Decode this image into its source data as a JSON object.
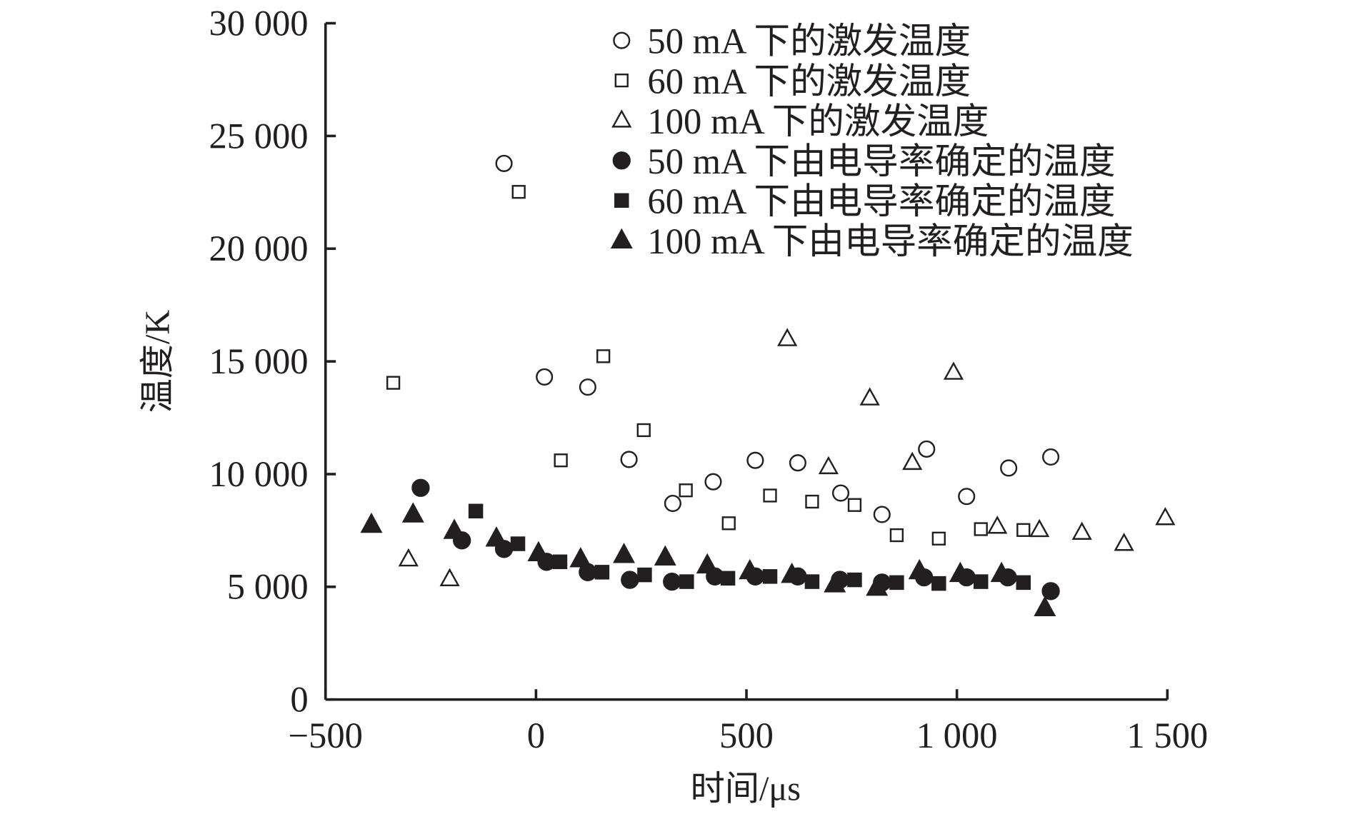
{
  "chart_data": {
    "type": "scatter",
    "title": "",
    "xlabel": "时间/μs",
    "ylabel": "温度/K",
    "xlim": [
      -500,
      1500
    ],
    "ylim": [
      0,
      30000
    ],
    "xticks": [
      -500,
      0,
      500,
      1000,
      1500
    ],
    "xtick_labels": [
      "−500",
      "0",
      "500",
      "1 000",
      "1 500"
    ],
    "yticks": [
      0,
      5000,
      10000,
      15000,
      20000,
      25000,
      30000
    ],
    "ytick_labels": [
      "0",
      "5 000",
      "10 000",
      "15 000",
      "20 000",
      "25 000",
      "30 000"
    ],
    "grid": false,
    "legend_position": "top-right",
    "series": [
      {
        "name": "50 mA 下的激发温度",
        "marker": "circle-open",
        "x": [
          -76,
          20,
          123,
          221,
          325,
          421,
          521,
          622,
          724,
          822,
          928,
          1023,
          1123,
          1223
        ],
        "y": [
          23780,
          14310,
          13860,
          10650,
          8700,
          9660,
          10610,
          10500,
          9160,
          8210,
          11110,
          9010,
          10270,
          10760
        ]
      },
      {
        "name": "60 mA 下的激发温度",
        "marker": "square-open",
        "x": [
          -339,
          -41,
          59,
          160,
          256,
          356,
          458,
          556,
          656,
          757,
          857,
          957,
          1057,
          1158
        ],
        "y": [
          14050,
          22520,
          10610,
          15230,
          11950,
          9280,
          7820,
          9050,
          8780,
          8630,
          7290,
          7140,
          7560,
          7520
        ]
      },
      {
        "name": "100 mA 下的激发温度",
        "marker": "triangle-open",
        "x": [
          -303,
          -205,
          597,
          695,
          793,
          894,
          992,
          1096,
          1196,
          1297,
          1397,
          1495
        ],
        "y": [
          6220,
          5340,
          15990,
          10310,
          13360,
          10500,
          14500,
          7670,
          7520,
          7400,
          6910,
          8050
        ]
      },
      {
        "name": "50 mA 下由电导率确定的温度",
        "marker": "circle-filled",
        "x": [
          -274,
          -176,
          -76,
          25,
          123,
          223,
          323,
          425,
          521,
          622,
          722,
          822,
          922,
          1023,
          1121,
          1223
        ],
        "y": [
          9390,
          7060,
          6680,
          6110,
          5650,
          5310,
          5230,
          5460,
          5460,
          5460,
          5310,
          5190,
          5420,
          5420,
          5420,
          4810
        ]
      },
      {
        "name": "60 mA 下由电导率确定的温度",
        "marker": "square-filled",
        "x": [
          -143,
          -43,
          57,
          157,
          258,
          358,
          456,
          556,
          656,
          757,
          857,
          957,
          1057,
          1158
        ],
        "y": [
          8360,
          6910,
          6110,
          5650,
          5530,
          5230,
          5380,
          5460,
          5230,
          5310,
          5190,
          5150,
          5230,
          5190
        ]
      },
      {
        "name": "100 mA 下由电导率确定的温度",
        "marker": "triangle-filled",
        "x": [
          -391,
          -292,
          -194,
          -94,
          6,
          106,
          209,
          307,
          407,
          508,
          608,
          710,
          810,
          911,
          1008,
          1106,
          1209
        ],
        "y": [
          7750,
          8210,
          7480,
          7140,
          6490,
          6220,
          6410,
          6300,
          5950,
          5690,
          5530,
          5110,
          4960,
          5690,
          5570,
          5570,
          4050
        ]
      }
    ],
    "colors": {
      "ink": "#231f20",
      "background": "#ffffff"
    }
  }
}
